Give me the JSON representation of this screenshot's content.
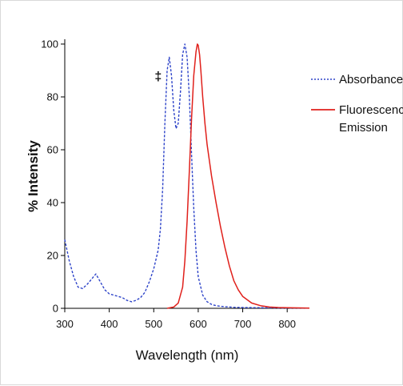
{
  "chart_data": {
    "type": "line",
    "title": "",
    "xlabel": "Wavelength (nm)",
    "ylabel": "% Intensity",
    "xlim": [
      300,
      850
    ],
    "ylim": [
      0,
      100
    ],
    "xticks": [
      300,
      400,
      500,
      600,
      700,
      800
    ],
    "yticks": [
      0,
      20,
      40,
      60,
      80,
      100
    ],
    "grid": false,
    "legend_position": "right",
    "annotation": "‡",
    "annotation_at": {
      "x": 510,
      "y": 88
    },
    "series": [
      {
        "name": "Absorbance",
        "style": "dotted",
        "color": "#2e44c9",
        "x": [
          300,
          310,
          320,
          330,
          340,
          350,
          360,
          370,
          380,
          390,
          400,
          410,
          420,
          430,
          440,
          450,
          460,
          470,
          480,
          490,
          500,
          510,
          515,
          520,
          525,
          530,
          535,
          540,
          545,
          550,
          555,
          560,
          565,
          570,
          575,
          580,
          585,
          590,
          595,
          600,
          610,
          620,
          630,
          640,
          650,
          660,
          680,
          700,
          750,
          800,
          850
        ],
        "y": [
          26,
          18,
          12,
          8,
          7.5,
          9,
          11,
          13,
          10,
          7,
          5.5,
          5,
          4.5,
          4,
          3,
          2.5,
          3,
          4,
          6,
          10,
          15,
          22,
          30,
          45,
          70,
          90,
          95,
          88,
          75,
          68,
          70,
          82,
          96,
          100,
          95,
          80,
          58,
          38,
          22,
          12,
          5,
          2.5,
          1.5,
          1,
          0.8,
          0.6,
          0.4,
          0.3,
          0.2,
          0.1,
          0.1
        ]
      },
      {
        "name": "Fluorescence Emission",
        "style": "solid",
        "color": "#e0201b",
        "x": [
          530,
          545,
          555,
          565,
          570,
          575,
          580,
          585,
          590,
          595,
          598,
          600,
          603,
          606,
          610,
          615,
          620,
          625,
          630,
          640,
          650,
          660,
          670,
          680,
          690,
          700,
          720,
          740,
          760,
          780,
          800,
          850
        ],
        "y": [
          0,
          0.5,
          2,
          8,
          18,
          33,
          52,
          72,
          88,
          97,
          100,
          99.5,
          96,
          90,
          80,
          70,
          62,
          56,
          50,
          40,
          31,
          23,
          16,
          10.5,
          7,
          4.5,
          2,
          1,
          0.5,
          0.3,
          0.2,
          0.1
        ]
      }
    ]
  }
}
